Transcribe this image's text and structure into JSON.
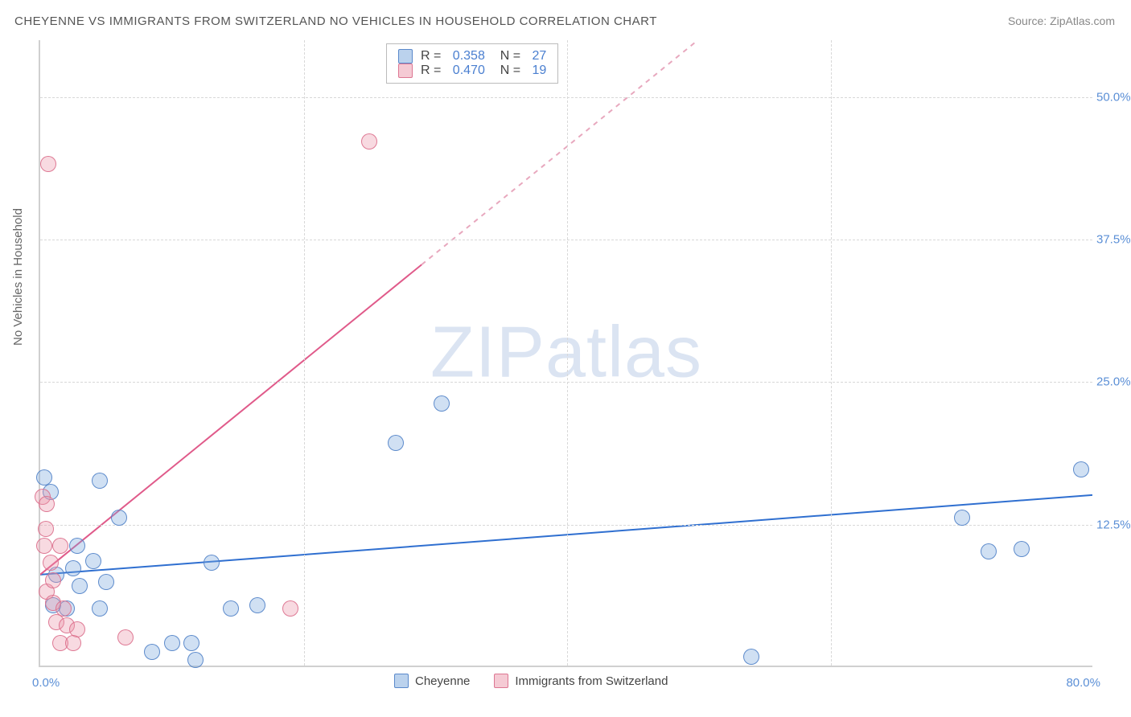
{
  "chart": {
    "type": "scatter",
    "title": "CHEYENNE VS IMMIGRANTS FROM SWITZERLAND NO VEHICLES IN HOUSEHOLD CORRELATION CHART",
    "source": "Source: ZipAtlas.com",
    "ylabel": "No Vehicles in Household",
    "watermark": "ZIPatlas",
    "xlim": [
      0,
      80
    ],
    "ylim": [
      0,
      55
    ],
    "yticks": [
      {
        "val": 12.5,
        "label": "12.5%"
      },
      {
        "val": 25.0,
        "label": "25.0%"
      },
      {
        "val": 37.5,
        "label": "37.5%"
      },
      {
        "val": 50.0,
        "label": "50.0%"
      }
    ],
    "xticks": [
      {
        "val": 0,
        "label": "0.0%"
      },
      {
        "val": 80,
        "label": "80.0%"
      }
    ],
    "xgrid": [
      20,
      40,
      60
    ],
    "grid_color": "#d8d8d8",
    "background_color": "#ffffff",
    "marker_radius": 10,
    "series": [
      {
        "name": "Cheyenne",
        "color_fill": "rgba(120,165,220,0.35)",
        "color_stroke": "rgba(80,130,200,0.9)",
        "css": "blue",
        "R": "0.358",
        "N": "27",
        "trend": {
          "x1": 0,
          "y1": 8.0,
          "x2": 80,
          "y2": 15.0,
          "color": "#2f6fd0",
          "width": 2,
          "dash": "none"
        },
        "points": [
          {
            "x": 0.3,
            "y": 16.5
          },
          {
            "x": 4.5,
            "y": 16.2
          },
          {
            "x": 0.8,
            "y": 15.2
          },
          {
            "x": 1.2,
            "y": 8.0
          },
          {
            "x": 2.5,
            "y": 8.5
          },
          {
            "x": 4.0,
            "y": 9.2
          },
          {
            "x": 6.0,
            "y": 13.0
          },
          {
            "x": 3.0,
            "y": 7.0
          },
          {
            "x": 5.0,
            "y": 7.3
          },
          {
            "x": 1.0,
            "y": 5.3
          },
          {
            "x": 2.0,
            "y": 5.0
          },
          {
            "x": 4.5,
            "y": 5.0
          },
          {
            "x": 8.5,
            "y": 1.2
          },
          {
            "x": 10.0,
            "y": 2.0
          },
          {
            "x": 11.5,
            "y": 2.0
          },
          {
            "x": 11.8,
            "y": 0.5
          },
          {
            "x": 14.5,
            "y": 5.0
          },
          {
            "x": 16.5,
            "y": 5.3
          },
          {
            "x": 13.0,
            "y": 9.0
          },
          {
            "x": 30.5,
            "y": 23.0
          },
          {
            "x": 27.0,
            "y": 19.5
          },
          {
            "x": 54.0,
            "y": 0.8
          },
          {
            "x": 70.0,
            "y": 13.0
          },
          {
            "x": 72.0,
            "y": 10.0
          },
          {
            "x": 74.5,
            "y": 10.2
          },
          {
            "x": 79.0,
            "y": 17.2
          },
          {
            "x": 2.8,
            "y": 10.5
          }
        ]
      },
      {
        "name": "Immigrants from Switzerland",
        "color_fill": "rgba(235,150,170,0.35)",
        "color_stroke": "rgba(220,110,140,0.9)",
        "css": "pink",
        "R": "0.470",
        "N": "19",
        "trend": {
          "x1": 0,
          "y1": 8.0,
          "x2": 50,
          "y2": 55.0,
          "color": "#e05a8a",
          "width": 2,
          "dash": "none",
          "dash_after": {
            "from_x": 29,
            "color": "#e8a8be"
          }
        },
        "points": [
          {
            "x": 0.6,
            "y": 44.0
          },
          {
            "x": 25.0,
            "y": 46.0
          },
          {
            "x": 0.2,
            "y": 14.8
          },
          {
            "x": 0.5,
            "y": 14.2
          },
          {
            "x": 0.4,
            "y": 12.0
          },
          {
            "x": 0.3,
            "y": 10.5
          },
          {
            "x": 0.8,
            "y": 9.0
          },
          {
            "x": 1.5,
            "y": 10.5
          },
          {
            "x": 0.5,
            "y": 6.5
          },
          {
            "x": 1.0,
            "y": 5.5
          },
          {
            "x": 1.8,
            "y": 5.0
          },
          {
            "x": 1.2,
            "y": 3.8
          },
          {
            "x": 2.0,
            "y": 3.5
          },
          {
            "x": 2.8,
            "y": 3.2
          },
          {
            "x": 1.5,
            "y": 2.0
          },
          {
            "x": 2.5,
            "y": 2.0
          },
          {
            "x": 6.5,
            "y": 2.5
          },
          {
            "x": 19.0,
            "y": 5.0
          },
          {
            "x": 1.0,
            "y": 7.5
          }
        ]
      }
    ],
    "bottom_legend": [
      {
        "swatch": "blue",
        "label": "Cheyenne"
      },
      {
        "swatch": "pink",
        "label": "Immigrants from Switzerland"
      }
    ]
  }
}
